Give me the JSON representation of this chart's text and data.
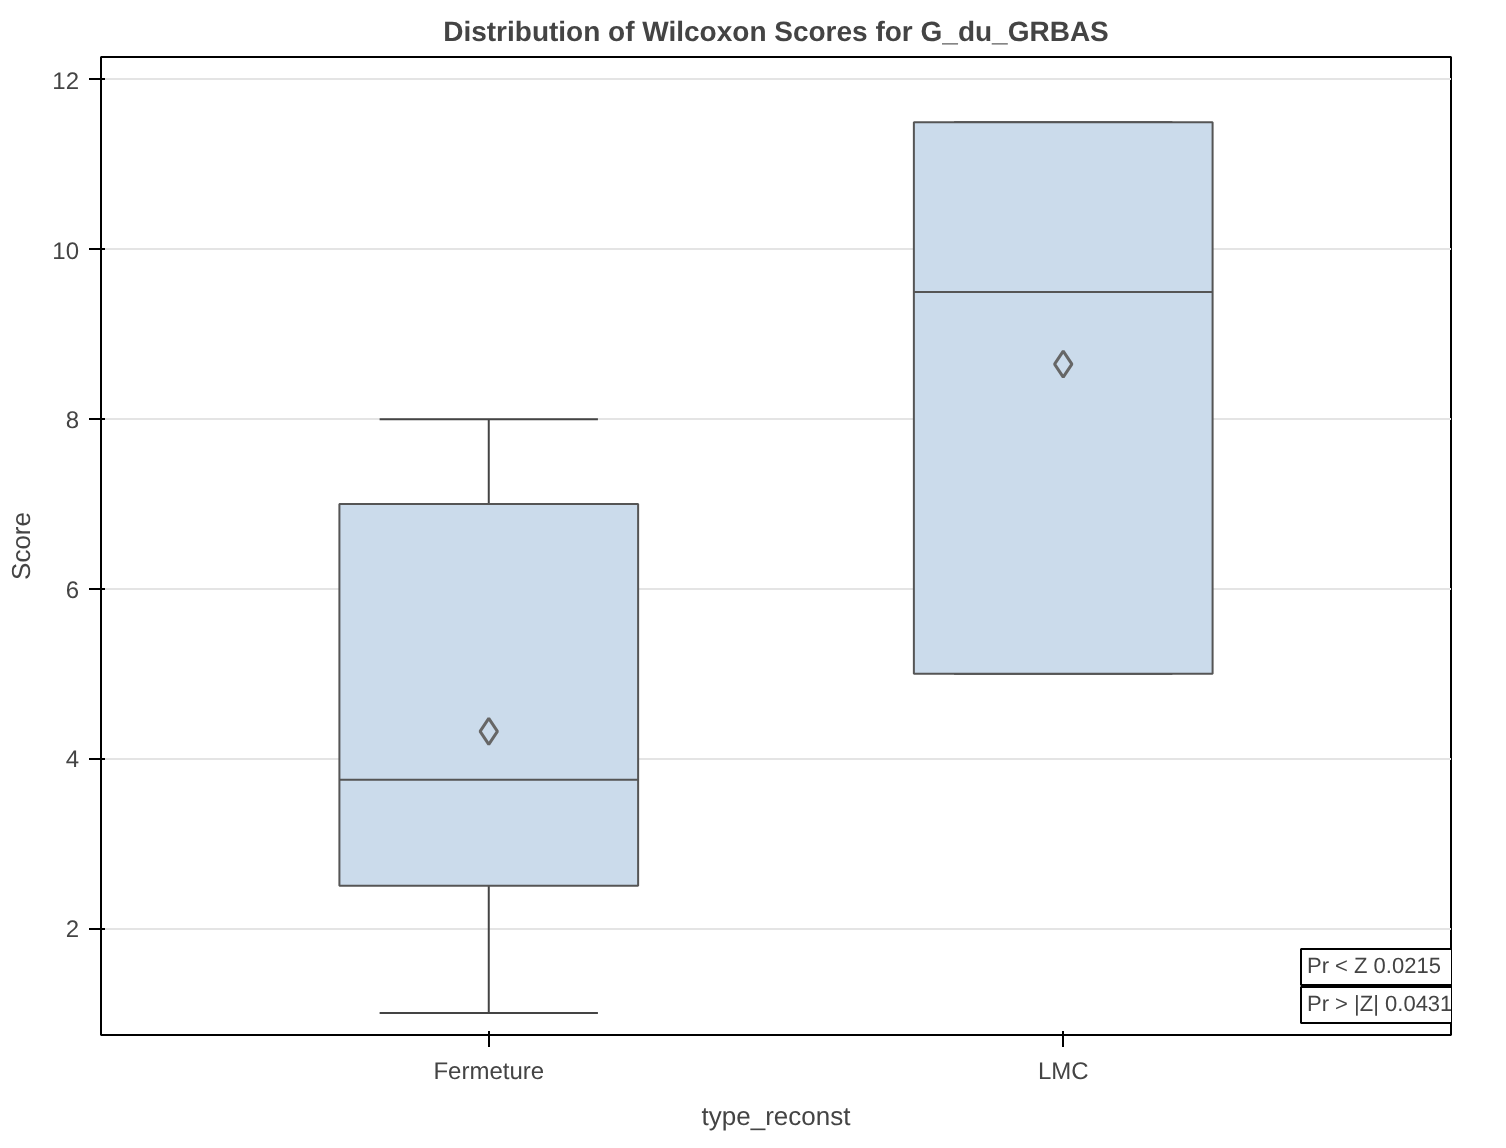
{
  "chart_data": {
    "type": "box",
    "title": "Distribution of Wilcoxon Scores for G_du_GRBAS",
    "xlabel": "type_reconst",
    "ylabel": "Score",
    "categories": [
      "Fermeture",
      "LMC"
    ],
    "series": [
      {
        "color": "#cbdbeb",
        "boxes": [
          {
            "low": 1.0,
            "q1": 2.5,
            "median": 3.75,
            "q3": 7.0,
            "high": 8.0,
            "mean": 4.32
          },
          {
            "low": 5.0,
            "q1": 5.0,
            "median": 9.5,
            "q3": 11.5,
            "high": 11.5,
            "mean": 8.65
          }
        ]
      }
    ],
    "ylim": [
      0.74,
      12.27
    ],
    "yticks": [
      2,
      4,
      6,
      8,
      10,
      12
    ],
    "grid": "y",
    "marker": "diamond",
    "annotations": [
      "Pr < Z    0.0215",
      "Pr > |Z|  0.0431"
    ]
  }
}
